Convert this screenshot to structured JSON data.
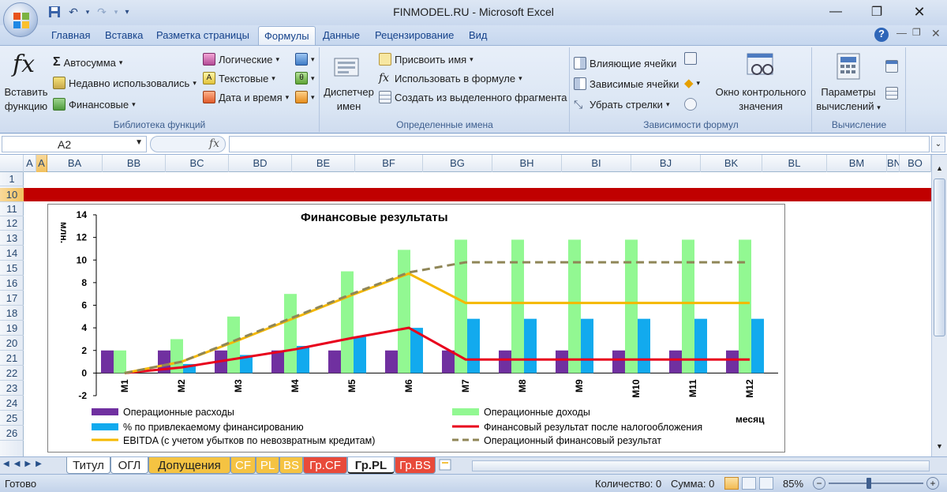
{
  "window": {
    "title": "FINMODEL.RU  -  Microsoft Excel"
  },
  "tabs": [
    "Главная",
    "Вставка",
    "Разметка страницы",
    "Формулы",
    "Данные",
    "Рецензирование",
    "Вид"
  ],
  "ribbon": {
    "library": {
      "insert_function": [
        "Вставить",
        "функцию"
      ],
      "autosum": "Автосумма",
      "recent": "Недавно использовались",
      "financial": "Финансовые",
      "logical": "Логические",
      "text": "Текстовые",
      "datetime": "Дата и время",
      "label": "Библиотека функций"
    },
    "names": {
      "manager": [
        "Диспетчер",
        "имен"
      ],
      "assign": "Присвоить имя",
      "use_in_formula": "Использовать в формуле",
      "create_from_sel": "Создать из выделенного фрагмента",
      "label": "Определенные имена"
    },
    "audit": {
      "precedents": "Влияющие ячейки",
      "dependents": "Зависимые ячейки",
      "remove_arrows": "Убрать стрелки",
      "watch": [
        "Окно контрольного",
        "значения"
      ],
      "label": "Зависимости формул"
    },
    "calc": {
      "options": [
        "Параметры",
        "вычислений"
      ],
      "label": "Вычисление"
    }
  },
  "formula_bar": {
    "name_box": "A2",
    "fx": "fx",
    "formula": ""
  },
  "columns": [
    "A",
    "A",
    "BA",
    "BB",
    "BC",
    "BD",
    "BE",
    "BF",
    "BG",
    "BH",
    "BI",
    "BJ",
    "BK",
    "BL",
    "BM",
    "BN",
    "BO"
  ],
  "rows": [
    "1",
    "10",
    "11",
    "12",
    "13",
    "14",
    "15",
    "16",
    "17",
    "18",
    "19",
    "20",
    "21",
    "22",
    "23",
    "24",
    "25",
    "26"
  ],
  "chart_data": {
    "type": "bar",
    "title": "Финансовые результаты",
    "ylabel": "млн.",
    "xlabel": "месяц",
    "categories": [
      "M1",
      "M2",
      "M3",
      "M4",
      "M5",
      "M6",
      "M7",
      "M8",
      "M9",
      "M10",
      "M11",
      "M12"
    ],
    "ylim": [
      -2,
      14
    ],
    "yticks": [
      "-2",
      "0",
      "2",
      "4",
      "6",
      "8",
      "10",
      "12",
      "14"
    ],
    "series": [
      {
        "name": "Операционные расходы",
        "kind": "bar",
        "color": "#7030a0",
        "values": [
          2,
          2,
          2,
          2,
          2,
          2,
          2,
          2,
          2,
          2,
          2,
          2
        ]
      },
      {
        "name": "Операционные доходы",
        "kind": "bar",
        "color": "#92f892",
        "values": [
          2,
          3,
          5,
          7,
          9,
          10.9,
          11.8,
          11.8,
          11.8,
          11.8,
          11.8,
          11.8
        ]
      },
      {
        "name": "% по привлекаемому финансированию",
        "kind": "bar",
        "color": "#12aaee",
        "values": [
          0,
          0.8,
          1.6,
          2.4,
          3.2,
          4,
          4.8,
          4.8,
          4.8,
          4.8,
          4.8,
          4.8
        ]
      },
      {
        "name": "Финансовый результат после налогообложения",
        "kind": "line",
        "color": "#e8001c",
        "values": [
          0,
          0.5,
          1.3,
          2.1,
          3.1,
          4,
          1.2,
          1.2,
          1.2,
          1.2,
          1.2,
          1.2
        ]
      },
      {
        "name": "EBITDA (с учетом убытков по невозвратным кредитам)",
        "kind": "line",
        "color": "#f5b800",
        "values": [
          0,
          1,
          2.9,
          4.9,
          6.9,
          8.8,
          6.2,
          6.2,
          6.2,
          6.2,
          6.2,
          6.2
        ]
      },
      {
        "name": "Операционный финансовый результат",
        "kind": "dash",
        "color": "#8f8657",
        "values": [
          0,
          1,
          3,
          5,
          7,
          8.9,
          9.8,
          9.8,
          9.8,
          9.8,
          9.8,
          9.8
        ]
      }
    ]
  },
  "sheets": [
    "Титул",
    "ОГЛ",
    "Допущения",
    "CF",
    "PL",
    "BS",
    "Гр.CF",
    "Гр.PL",
    "Гр.BS"
  ],
  "status": {
    "ready": "Готово",
    "count_label": "Количество: 0",
    "sum_label": "Сумма: 0",
    "zoom": "85%"
  },
  "colors": {
    "accent_red": "#c00000",
    "tab_active": "#ffffff"
  }
}
